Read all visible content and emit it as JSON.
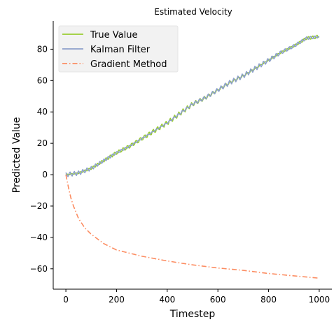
{
  "chart_data": {
    "type": "line",
    "title": "Estimated Velocity",
    "xlabel": "Timestep",
    "ylabel": "Predicted Value",
    "xlim": [
      -50,
      1050
    ],
    "ylim": [
      -73,
      98
    ],
    "xticks": [
      0,
      200,
      400,
      600,
      800,
      1000
    ],
    "yticks": [
      -60,
      -40,
      -20,
      0,
      20,
      40,
      60,
      80
    ],
    "xtick_labels": [
      "0",
      "200",
      "400",
      "600",
      "800",
      "1000"
    ],
    "ytick_labels": [
      "−60",
      "−40",
      "−20",
      "0",
      "20",
      "40",
      "60",
      "80"
    ],
    "grid": false,
    "legend_position": "top-left",
    "series": [
      {
        "name": "True Value",
        "color": "#9acd32",
        "style": "solid",
        "x": [
          0,
          50,
          100,
          150,
          200,
          250,
          300,
          350,
          400,
          450,
          500,
          550,
          600,
          650,
          700,
          750,
          800,
          850,
          900,
          950,
          1000
        ],
        "y": [
          0,
          1,
          4,
          9,
          14,
          18,
          23,
          28,
          33,
          39,
          45,
          49,
          54,
          59,
          63,
          68,
          73,
          78,
          82,
          87,
          88
        ]
      },
      {
        "name": "Kalman Filter",
        "color": "#8da0cb",
        "style": "solid",
        "x": [
          0,
          50,
          100,
          150,
          200,
          250,
          300,
          350,
          400,
          450,
          500,
          550,
          600,
          650,
          700,
          750,
          800,
          850,
          900,
          950,
          1000
        ],
        "y": [
          0,
          1,
          4,
          9,
          14,
          18,
          23,
          28,
          33,
          39,
          45,
          49,
          54,
          59,
          63,
          68,
          73,
          78,
          82,
          87,
          88
        ]
      },
      {
        "name": "Gradient Method",
        "color": "#fc8d62",
        "style": "dashdot",
        "x": [
          0,
          10,
          20,
          30,
          50,
          75,
          100,
          150,
          200,
          250,
          300,
          400,
          500,
          600,
          700,
          800,
          900,
          1000
        ],
        "y": [
          0,
          -8,
          -15,
          -20,
          -28,
          -34,
          -38,
          -44,
          -48,
          -50,
          -52,
          -55,
          -57.5,
          -59.5,
          -61,
          -63,
          -64.5,
          -66
        ]
      }
    ]
  }
}
